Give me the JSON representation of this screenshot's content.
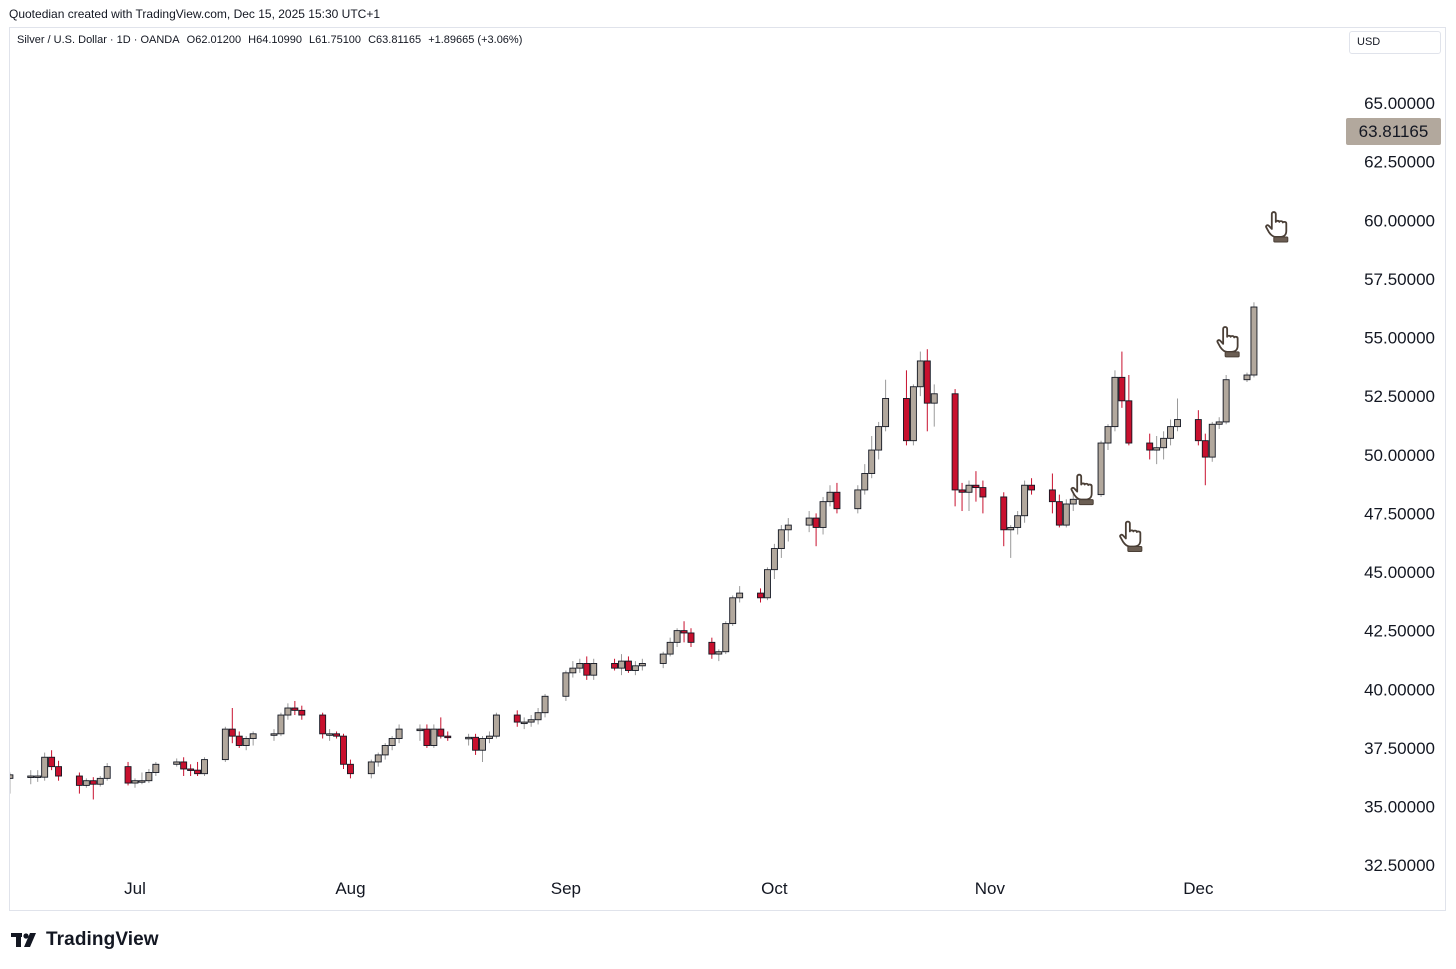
{
  "header": {
    "credit": "Quotedian created with TradingView.com, Dec 15, 2025 15:30 UTC+1"
  },
  "legend": {
    "symbol": "Silver / U.S. Dollar · 1D · OANDA",
    "open": "O62.01200",
    "high": "H64.10990",
    "low": "L61.75100",
    "close": "C63.81165",
    "change": "+1.89665 (+3.06%)"
  },
  "currency_button": "USD",
  "last_price_label": "63.81165",
  "brand": {
    "name": "TradingView",
    "icon": "tradingview-logo-icon"
  },
  "annotations": [
    {
      "icon": "hand-pointer-icon",
      "date": "2025-11-14",
      "price": 48.6
    },
    {
      "icon": "hand-pointer-icon",
      "date": "2025-11-21",
      "price": 46.6
    },
    {
      "icon": "hand-pointer-icon",
      "date": "2025-12-05",
      "price": 54.9
    },
    {
      "icon": "hand-pointer-icon",
      "date": "2025-12-12",
      "price": 59.8
    }
  ],
  "colors": {
    "up_fill": "#b2a89d",
    "down_fill": "#c8102e",
    "border": "#131722",
    "wick_down": "#c8102e",
    "wick_up": "#9a9a9a"
  },
  "chart_data": {
    "type": "candlestick",
    "title": "",
    "xlabel": "",
    "ylabel": "",
    "y_ticks": [
      "65.00000",
      "62.50000",
      "60.00000",
      "57.50000",
      "55.00000",
      "52.50000",
      "50.00000",
      "47.50000",
      "45.00000",
      "42.50000",
      "40.00000",
      "37.50000",
      "35.00000",
      "32.50000"
    ],
    "ylim": [
      32.5,
      66.5
    ],
    "x_ticks": [
      {
        "label": "Jul",
        "date": "2025-07-01"
      },
      {
        "label": "Aug",
        "date": "2025-08-01"
      },
      {
        "label": "Sep",
        "date": "2025-09-01"
      },
      {
        "label": "Oct",
        "date": "2025-10-01"
      },
      {
        "label": "Nov",
        "date": "2025-11-01"
      },
      {
        "label": "Dec",
        "date": "2025-12-01"
      }
    ],
    "candles": [
      {
        "date": "2025-06-13",
        "o": 36.2,
        "h": 36.45,
        "l": 35.55,
        "c": 36.35
      },
      {
        "date": "2025-06-16",
        "o": 36.3,
        "h": 36.55,
        "l": 35.95,
        "c": 36.3
      },
      {
        "date": "2025-06-17",
        "o": 36.3,
        "h": 36.55,
        "l": 36.05,
        "c": 36.3
      },
      {
        "date": "2025-06-18",
        "o": 36.25,
        "h": 37.3,
        "l": 36.1,
        "c": 37.1
      },
      {
        "date": "2025-06-19",
        "o": 37.1,
        "h": 37.4,
        "l": 36.55,
        "c": 36.7
      },
      {
        "date": "2025-06-20",
        "o": 36.7,
        "h": 36.95,
        "l": 36.1,
        "c": 36.3
      },
      {
        "date": "2025-06-23",
        "o": 36.3,
        "h": 36.45,
        "l": 35.55,
        "c": 35.9
      },
      {
        "date": "2025-06-24",
        "o": 35.9,
        "h": 36.2,
        "l": 35.8,
        "c": 36.1
      },
      {
        "date": "2025-06-25",
        "o": 36.1,
        "h": 36.25,
        "l": 35.3,
        "c": 35.95
      },
      {
        "date": "2025-06-26",
        "o": 35.95,
        "h": 36.3,
        "l": 35.85,
        "c": 36.2
      },
      {
        "date": "2025-06-27",
        "o": 36.2,
        "h": 36.85,
        "l": 36.1,
        "c": 36.7
      },
      {
        "date": "2025-06-30",
        "o": 36.7,
        "h": 36.9,
        "l": 35.9,
        "c": 36.0
      },
      {
        "date": "2025-07-01",
        "o": 36.0,
        "h": 36.2,
        "l": 35.8,
        "c": 36.1
      },
      {
        "date": "2025-07-02",
        "o": 36.1,
        "h": 36.45,
        "l": 35.95,
        "c": 36.1
      },
      {
        "date": "2025-07-03",
        "o": 36.1,
        "h": 36.6,
        "l": 36.0,
        "c": 36.45
      },
      {
        "date": "2025-07-04",
        "o": 36.45,
        "h": 36.9,
        "l": 36.3,
        "c": 36.8
      },
      {
        "date": "2025-07-07",
        "o": 36.8,
        "h": 37.05,
        "l": 36.7,
        "c": 36.9
      },
      {
        "date": "2025-07-08",
        "o": 36.9,
        "h": 37.1,
        "l": 36.3,
        "c": 36.6
      },
      {
        "date": "2025-07-09",
        "o": 36.6,
        "h": 36.8,
        "l": 36.3,
        "c": 36.55
      },
      {
        "date": "2025-07-10",
        "o": 36.55,
        "h": 36.9,
        "l": 36.3,
        "c": 36.4
      },
      {
        "date": "2025-07-11",
        "o": 36.4,
        "h": 37.1,
        "l": 36.3,
        "c": 37.0
      },
      {
        "date": "2025-07-14",
        "o": 37.0,
        "h": 38.4,
        "l": 36.9,
        "c": 38.3
      },
      {
        "date": "2025-07-15",
        "o": 38.3,
        "h": 39.2,
        "l": 37.7,
        "c": 38.0
      },
      {
        "date": "2025-07-16",
        "o": 38.0,
        "h": 38.2,
        "l": 37.5,
        "c": 37.6
      },
      {
        "date": "2025-07-17",
        "o": 37.6,
        "h": 38.0,
        "l": 37.4,
        "c": 37.9
      },
      {
        "date": "2025-07-18",
        "o": 37.9,
        "h": 38.2,
        "l": 37.6,
        "c": 38.1
      },
      {
        "date": "2025-07-21",
        "o": 38.1,
        "h": 38.3,
        "l": 37.8,
        "c": 38.1
      },
      {
        "date": "2025-07-22",
        "o": 38.1,
        "h": 39.0,
        "l": 38.0,
        "c": 38.9
      },
      {
        "date": "2025-07-23",
        "o": 38.9,
        "h": 39.4,
        "l": 38.7,
        "c": 39.2
      },
      {
        "date": "2025-07-24",
        "o": 39.2,
        "h": 39.5,
        "l": 38.9,
        "c": 39.1
      },
      {
        "date": "2025-07-25",
        "o": 39.1,
        "h": 39.3,
        "l": 38.7,
        "c": 38.9
      },
      {
        "date": "2025-07-28",
        "o": 38.9,
        "h": 39.0,
        "l": 37.9,
        "c": 38.1
      },
      {
        "date": "2025-07-29",
        "o": 38.1,
        "h": 38.3,
        "l": 37.8,
        "c": 38.1
      },
      {
        "date": "2025-07-30",
        "o": 38.1,
        "h": 38.2,
        "l": 37.9,
        "c": 38.0
      },
      {
        "date": "2025-07-31",
        "o": 38.0,
        "h": 38.1,
        "l": 36.6,
        "c": 36.8
      },
      {
        "date": "2025-08-01",
        "o": 36.8,
        "h": 37.0,
        "l": 36.2,
        "c": 36.4
      },
      {
        "date": "2025-08-04",
        "o": 36.4,
        "h": 37.0,
        "l": 36.2,
        "c": 36.9
      },
      {
        "date": "2025-08-05",
        "o": 36.9,
        "h": 37.3,
        "l": 36.7,
        "c": 37.2
      },
      {
        "date": "2025-08-06",
        "o": 37.2,
        "h": 37.7,
        "l": 37.0,
        "c": 37.6
      },
      {
        "date": "2025-08-07",
        "o": 37.6,
        "h": 38.0,
        "l": 37.4,
        "c": 37.9
      },
      {
        "date": "2025-08-08",
        "o": 37.9,
        "h": 38.5,
        "l": 37.7,
        "c": 38.3
      },
      {
        "date": "2025-08-11",
        "o": 38.3,
        "h": 38.5,
        "l": 37.8,
        "c": 38.3
      },
      {
        "date": "2025-08-12",
        "o": 38.3,
        "h": 38.5,
        "l": 37.5,
        "c": 37.6
      },
      {
        "date": "2025-08-13",
        "o": 37.6,
        "h": 38.5,
        "l": 37.5,
        "c": 38.3
      },
      {
        "date": "2025-08-14",
        "o": 38.3,
        "h": 38.8,
        "l": 37.9,
        "c": 38.0
      },
      {
        "date": "2025-08-15",
        "o": 38.0,
        "h": 38.2,
        "l": 37.8,
        "c": 37.95
      },
      {
        "date": "2025-08-18",
        "o": 37.95,
        "h": 38.1,
        "l": 37.6,
        "c": 37.95
      },
      {
        "date": "2025-08-19",
        "o": 37.95,
        "h": 38.1,
        "l": 37.2,
        "c": 37.4
      },
      {
        "date": "2025-08-20",
        "o": 37.4,
        "h": 38.0,
        "l": 36.9,
        "c": 37.9
      },
      {
        "date": "2025-08-21",
        "o": 37.9,
        "h": 38.2,
        "l": 37.7,
        "c": 38.0
      },
      {
        "date": "2025-08-22",
        "o": 38.0,
        "h": 39.0,
        "l": 37.9,
        "c": 38.9
      },
      {
        "date": "2025-08-25",
        "o": 38.9,
        "h": 39.1,
        "l": 38.4,
        "c": 38.6
      },
      {
        "date": "2025-08-26",
        "o": 38.6,
        "h": 38.8,
        "l": 38.3,
        "c": 38.6
      },
      {
        "date": "2025-08-27",
        "o": 38.6,
        "h": 38.9,
        "l": 38.4,
        "c": 38.7
      },
      {
        "date": "2025-08-28",
        "o": 38.7,
        "h": 39.2,
        "l": 38.5,
        "c": 39.0
      },
      {
        "date": "2025-08-29",
        "o": 39.0,
        "h": 39.8,
        "l": 38.8,
        "c": 39.7
      },
      {
        "date": "2025-09-01",
        "o": 39.7,
        "h": 40.8,
        "l": 39.5,
        "c": 40.7
      },
      {
        "date": "2025-09-02",
        "o": 40.7,
        "h": 41.2,
        "l": 40.5,
        "c": 40.9
      },
      {
        "date": "2025-09-03",
        "o": 40.9,
        "h": 41.3,
        "l": 40.7,
        "c": 41.1
      },
      {
        "date": "2025-09-04",
        "o": 41.1,
        "h": 41.4,
        "l": 40.4,
        "c": 40.6
      },
      {
        "date": "2025-09-05",
        "o": 40.6,
        "h": 41.3,
        "l": 40.4,
        "c": 41.1
      },
      {
        "date": "2025-09-08",
        "o": 41.1,
        "h": 41.3,
        "l": 40.8,
        "c": 40.9
      },
      {
        "date": "2025-09-09",
        "o": 40.9,
        "h": 41.5,
        "l": 40.6,
        "c": 41.2
      },
      {
        "date": "2025-09-10",
        "o": 41.2,
        "h": 41.4,
        "l": 40.7,
        "c": 40.8
      },
      {
        "date": "2025-09-11",
        "o": 40.8,
        "h": 41.2,
        "l": 40.6,
        "c": 41.0
      },
      {
        "date": "2025-09-12",
        "o": 41.0,
        "h": 41.3,
        "l": 40.8,
        "c": 41.1
      },
      {
        "date": "2025-09-15",
        "o": 41.1,
        "h": 41.6,
        "l": 40.9,
        "c": 41.5
      },
      {
        "date": "2025-09-16",
        "o": 41.5,
        "h": 42.2,
        "l": 41.4,
        "c": 42.0
      },
      {
        "date": "2025-09-17",
        "o": 42.0,
        "h": 42.6,
        "l": 41.8,
        "c": 42.5
      },
      {
        "date": "2025-09-18",
        "o": 42.5,
        "h": 42.9,
        "l": 42.0,
        "c": 42.4
      },
      {
        "date": "2025-09-19",
        "o": 42.4,
        "h": 42.6,
        "l": 41.8,
        "c": 42.0
      },
      {
        "date": "2025-09-22",
        "o": 42.0,
        "h": 42.2,
        "l": 41.3,
        "c": 41.5
      },
      {
        "date": "2025-09-23",
        "o": 41.5,
        "h": 41.7,
        "l": 41.2,
        "c": 41.6
      },
      {
        "date": "2025-09-24",
        "o": 41.6,
        "h": 42.9,
        "l": 41.5,
        "c": 42.8
      },
      {
        "date": "2025-09-25",
        "o": 42.8,
        "h": 44.0,
        "l": 42.7,
        "c": 43.9
      },
      {
        "date": "2025-09-26",
        "o": 43.9,
        "h": 44.4,
        "l": 43.7,
        "c": 44.1
      },
      {
        "date": "2025-09-29",
        "o": 44.1,
        "h": 44.3,
        "l": 43.7,
        "c": 43.9
      },
      {
        "date": "2025-09-30",
        "o": 43.9,
        "h": 45.2,
        "l": 43.8,
        "c": 45.1
      },
      {
        "date": "2025-10-01",
        "o": 45.1,
        "h": 46.2,
        "l": 44.7,
        "c": 46.0
      },
      {
        "date": "2025-10-02",
        "o": 46.0,
        "h": 47.0,
        "l": 45.6,
        "c": 46.8
      },
      {
        "date": "2025-10-03",
        "o": 46.8,
        "h": 47.3,
        "l": 46.3,
        "c": 47.0
      },
      {
        "date": "2025-10-06",
        "o": 47.0,
        "h": 47.6,
        "l": 46.7,
        "c": 47.3
      },
      {
        "date": "2025-10-07",
        "o": 47.3,
        "h": 47.5,
        "l": 46.1,
        "c": 46.9
      },
      {
        "date": "2025-10-08",
        "o": 46.9,
        "h": 48.2,
        "l": 46.6,
        "c": 48.0
      },
      {
        "date": "2025-10-09",
        "o": 48.0,
        "h": 48.7,
        "l": 47.8,
        "c": 48.4
      },
      {
        "date": "2025-10-10",
        "o": 48.4,
        "h": 48.8,
        "l": 47.5,
        "c": 47.7
      },
      {
        "date": "2025-10-13",
        "o": 47.7,
        "h": 48.7,
        "l": 47.5,
        "c": 48.5
      },
      {
        "date": "2025-10-14",
        "o": 48.5,
        "h": 49.6,
        "l": 48.3,
        "c": 49.2
      },
      {
        "date": "2025-10-15",
        "o": 49.2,
        "h": 50.8,
        "l": 49.0,
        "c": 50.2
      },
      {
        "date": "2025-10-16",
        "o": 50.2,
        "h": 51.4,
        "l": 49.8,
        "c": 51.2
      },
      {
        "date": "2025-10-17",
        "o": 51.2,
        "h": 53.2,
        "l": 51.0,
        "c": 52.4
      },
      {
        "date": "2025-10-20",
        "o": 52.4,
        "h": 53.6,
        "l": 50.4,
        "c": 50.6
      },
      {
        "date": "2025-10-21",
        "o": 50.6,
        "h": 53.0,
        "l": 50.4,
        "c": 52.9
      },
      {
        "date": "2025-10-22",
        "o": 52.9,
        "h": 54.4,
        "l": 52.5,
        "c": 54.0
      },
      {
        "date": "2025-10-23",
        "o": 54.0,
        "h": 54.5,
        "l": 51.0,
        "c": 52.2
      },
      {
        "date": "2025-10-24",
        "o": 52.2,
        "h": 53.0,
        "l": 51.2,
        "c": 52.6
      },
      {
        "date": "2025-10-27",
        "o": 52.6,
        "h": 52.8,
        "l": 47.8,
        "c": 48.5
      },
      {
        "date": "2025-10-28",
        "o": 48.5,
        "h": 48.8,
        "l": 47.6,
        "c": 48.4
      },
      {
        "date": "2025-10-29",
        "o": 48.4,
        "h": 48.9,
        "l": 47.6,
        "c": 48.7
      },
      {
        "date": "2025-10-30",
        "o": 48.7,
        "h": 49.3,
        "l": 48.0,
        "c": 48.6
      },
      {
        "date": "2025-10-31",
        "o": 48.6,
        "h": 48.9,
        "l": 47.5,
        "c": 48.2
      },
      {
        "date": "2025-11-03",
        "o": 48.2,
        "h": 48.4,
        "l": 46.1,
        "c": 46.8
      },
      {
        "date": "2025-11-04",
        "o": 46.8,
        "h": 47.0,
        "l": 45.6,
        "c": 46.9
      },
      {
        "date": "2025-11-05",
        "o": 46.9,
        "h": 47.6,
        "l": 46.6,
        "c": 47.4
      },
      {
        "date": "2025-11-06",
        "o": 47.4,
        "h": 48.9,
        "l": 47.1,
        "c": 48.7
      },
      {
        "date": "2025-11-07",
        "o": 48.7,
        "h": 49.0,
        "l": 48.3,
        "c": 48.5
      },
      {
        "date": "2025-11-10",
        "o": 48.5,
        "h": 49.2,
        "l": 47.5,
        "c": 48.0
      },
      {
        "date": "2025-11-11",
        "o": 48.0,
        "h": 48.3,
        "l": 46.9,
        "c": 47.0
      },
      {
        "date": "2025-11-12",
        "o": 47.0,
        "h": 48.1,
        "l": 46.9,
        "c": 47.9
      },
      {
        "date": "2025-11-13",
        "o": 47.9,
        "h": 48.4,
        "l": 47.6,
        "c": 48.1
      },
      {
        "date": "2025-11-14",
        "o": 48.1,
        "h": 48.8,
        "l": 47.9,
        "c": 48.3
      },
      {
        "date": "2025-11-17",
        "o": 48.3,
        "h": 50.6,
        "l": 48.2,
        "c": 50.5
      },
      {
        "date": "2025-11-18",
        "o": 50.5,
        "h": 51.3,
        "l": 50.2,
        "c": 51.2
      },
      {
        "date": "2025-11-19",
        "o": 51.2,
        "h": 53.6,
        "l": 51.0,
        "c": 53.3
      },
      {
        "date": "2025-11-20",
        "o": 53.3,
        "h": 54.4,
        "l": 52.0,
        "c": 52.3
      },
      {
        "date": "2025-11-21",
        "o": 52.3,
        "h": 53.4,
        "l": 50.4,
        "c": 50.5
      },
      {
        "date": "2025-11-24",
        "o": 50.5,
        "h": 50.9,
        "l": 49.8,
        "c": 50.2
      },
      {
        "date": "2025-11-25",
        "o": 50.2,
        "h": 50.8,
        "l": 49.6,
        "c": 50.3
      },
      {
        "date": "2025-11-26",
        "o": 50.3,
        "h": 51.0,
        "l": 49.8,
        "c": 50.7
      },
      {
        "date": "2025-11-27",
        "o": 50.7,
        "h": 51.5,
        "l": 50.4,
        "c": 51.2
      },
      {
        "date": "2025-11-28",
        "o": 51.2,
        "h": 52.4,
        "l": 51.0,
        "c": 51.5
      },
      {
        "date": "2025-12-01",
        "o": 51.5,
        "h": 51.9,
        "l": 50.4,
        "c": 50.6
      },
      {
        "date": "2025-12-02",
        "o": 50.6,
        "h": 50.9,
        "l": 48.7,
        "c": 49.9
      },
      {
        "date": "2025-12-03",
        "o": 49.9,
        "h": 51.4,
        "l": 49.7,
        "c": 51.3
      },
      {
        "date": "2025-12-04",
        "o": 51.3,
        "h": 51.6,
        "l": 51.1,
        "c": 51.4
      },
      {
        "date": "2025-12-05",
        "o": 51.4,
        "h": 53.4,
        "l": 51.3,
        "c": 53.2
      },
      {
        "date": "2025-12-08",
        "o": 53.2,
        "h": 53.5,
        "l": 53.1,
        "c": 53.4
      },
      {
        "date": "2025-12-09",
        "o": 53.4,
        "h": 56.5,
        "l": 53.3,
        "c": 56.3
      }
    ]
  }
}
